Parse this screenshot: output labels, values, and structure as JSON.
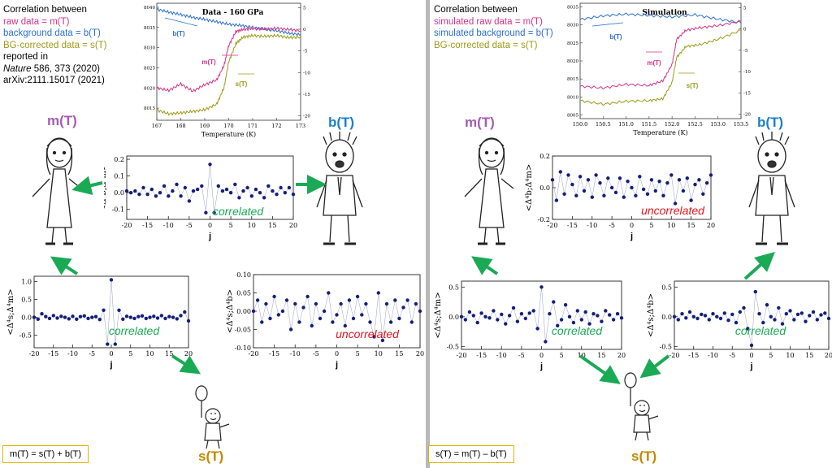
{
  "left": {
    "caption": {
      "line1": "Correlation between",
      "line2": "raw data = m(T)",
      "line3": "background data = b(T)",
      "line4": "BG-corrected data = s(T)",
      "line5": "reported in",
      "line6_journal": "Nature",
      "line6_rest": " 586, 373 (2020)",
      "line7": "arXiv:2111.15017 (2021)"
    },
    "names": {
      "m": "m(T)",
      "b": "b(T)",
      "s": "s(T)"
    },
    "formula": "m(T) = s(T) + b(T)"
  },
  "right": {
    "caption": {
      "line1": "Correlation between",
      "line2": "simulated raw data = m(T)",
      "line3": "simulated background = b(T)",
      "line4": "BG-corrected data = s(T)"
    },
    "names": {
      "m": "m(T)",
      "b": "b(T)",
      "s": "s(T)"
    },
    "formula": "s(T) = m(T) – b(T)"
  },
  "colors": {
    "m": "#d6338a",
    "b": "#2a6fd1",
    "s": "#9c9a17",
    "arrow": "#1aaa55",
    "dots": "#141f7a",
    "uncorr": "#e0161d",
    "corr": "#1aaa55",
    "name_m": "#a45db0",
    "name_b": "#1a7fd0",
    "name_s": "#c08a00"
  },
  "chart_data": [
    {
      "id": "left-temperature",
      "type": "line",
      "title": "Data - 160 GPa",
      "xlabel": "Temperature   (K)",
      "x_ticks": [
        "167",
        "168",
        "169",
        "170",
        "171",
        "172",
        "173"
      ],
      "y_left_ticks": [
        "8040",
        "8035",
        "8030",
        "8025",
        "8020",
        "8015"
      ],
      "y_right_ticks": [
        "5",
        "0",
        "-5",
        "-10",
        "-15",
        "-20"
      ],
      "xlim": [
        167,
        173
      ],
      "ylim_left": [
        8012,
        8041
      ],
      "ylim_right": [
        -21,
        6
      ],
      "labels": {
        "b": "b(T)",
        "m": "m(T)",
        "s": "s(T)"
      },
      "series": [
        {
          "name": "b(T)",
          "axis": "left",
          "x": [
            167.0,
            167.5,
            168.0,
            168.5,
            169.0,
            169.5,
            170.0,
            170.5,
            171.0,
            171.5,
            172.0,
            172.5,
            173.0
          ],
          "y": [
            8039.5,
            8038.8,
            8038.2,
            8037.5,
            8037.0,
            8036.4,
            8035.8,
            8035.5,
            8035.0,
            8034.6,
            8034.2,
            8033.6,
            8033.2
          ]
        },
        {
          "name": "m(T)",
          "axis": "left",
          "x": [
            167.0,
            167.5,
            168.0,
            168.5,
            169.0,
            169.5,
            169.8,
            170.0,
            170.3,
            170.6,
            171.0,
            171.5,
            172.0,
            172.5,
            173.0
          ],
          "y": [
            8020.0,
            8019.4,
            8021.0,
            8019.2,
            8020.8,
            8022.0,
            8025.5,
            8030.5,
            8034.0,
            8034.5,
            8034.7,
            8034.6,
            8034.8,
            8034.5,
            8034.2
          ]
        },
        {
          "name": "s(T)",
          "axis": "left",
          "x": [
            167.0,
            167.5,
            168.0,
            168.5,
            169.0,
            169.5,
            169.8,
            170.0,
            170.3,
            170.6,
            171.0,
            171.5,
            172.0,
            172.5,
            173.0
          ],
          "y": [
            8014.5,
            8013.6,
            8013.8,
            8014.2,
            8014.6,
            8016.0,
            8020.0,
            8026.5,
            8031.0,
            8032.6,
            8033.0,
            8032.8,
            8033.0,
            8032.5,
            8032.6
          ]
        }
      ]
    },
    {
      "id": "right-temperature",
      "type": "line",
      "title": "Simulation",
      "xlabel": "Temperature   (K)",
      "x_ticks": [
        "150.0",
        "150.5",
        "151.0",
        "151.5",
        "152.0",
        "152.5",
        "153.0",
        "153.5"
      ],
      "y_left_ticks": [
        "8035",
        "8030",
        "8025",
        "8020",
        "8015",
        "8010",
        "8005"
      ],
      "y_right_ticks": [
        "5",
        "0",
        "-5",
        "-10",
        "-15",
        "-20"
      ],
      "xlim": [
        150.0,
        153.5
      ],
      "ylim_left": [
        8004,
        8036
      ],
      "ylim_right": [
        -21,
        6
      ],
      "labels": {
        "b": "b(T)",
        "m": "m(T)",
        "s": "s(T)"
      },
      "series": [
        {
          "name": "b(T)",
          "axis": "left",
          "x": [
            150.0,
            150.5,
            151.0,
            151.5,
            152.0,
            152.5,
            153.0,
            153.5
          ],
          "y": [
            8031.5,
            8032.5,
            8033.0,
            8032.6,
            8032.2,
            8032.8,
            8031.6,
            8030.6
          ]
        },
        {
          "name": "m(T)",
          "axis": "left",
          "x": [
            150.0,
            150.5,
            151.0,
            151.5,
            151.8,
            152.0,
            152.1,
            152.3,
            152.6,
            153.0,
            153.5
          ],
          "y": [
            8013.0,
            8012.5,
            8013.5,
            8013.2,
            8014.5,
            8019.0,
            8026.0,
            8028.5,
            8029.2,
            8029.8,
            8031.0
          ]
        },
        {
          "name": "s(T)",
          "axis": "left",
          "x": [
            150.0,
            150.5,
            151.0,
            151.5,
            151.8,
            152.0,
            152.1,
            152.3,
            152.6,
            153.0,
            153.5
          ],
          "y": [
            8009.0,
            8008.0,
            8008.8,
            8009.0,
            8009.5,
            8014.0,
            8021.0,
            8024.0,
            8024.5,
            8026.0,
            8028.5
          ]
        }
      ]
    },
    {
      "id": "left-bm",
      "type": "scatter",
      "ylabel": "<Δ⁴b;Δ⁴m>",
      "xlabel": "j",
      "x_ticks": [
        "-20",
        "-15",
        "-10",
        "-5",
        "0",
        "5",
        "10",
        "15",
        "20"
      ],
      "y_ticks": [
        "0.2",
        "0.1",
        "0.0",
        "-0.1"
      ],
      "xlim": [
        -20,
        20
      ],
      "ylim": [
        -0.16,
        0.22
      ],
      "annotation": "correlated",
      "annotation_color": "corr",
      "x": [
        -20,
        -19,
        -18,
        -17,
        -16,
        -15,
        -14,
        -13,
        -12,
        -11,
        -10,
        -9,
        -8,
        -7,
        -6,
        -5,
        -4,
        -3,
        -2,
        -1,
        0,
        1,
        2,
        3,
        4,
        5,
        6,
        7,
        8,
        9,
        10,
        11,
        12,
        13,
        14,
        15,
        16,
        17,
        18,
        19,
        20
      ],
      "values": [
        0.01,
        0.0,
        0.01,
        -0.01,
        0.03,
        -0.01,
        0.02,
        -0.02,
        0.0,
        0.04,
        -0.02,
        0.01,
        0.05,
        -0.02,
        0.03,
        -0.05,
        0.01,
        0.02,
        0.04,
        -0.12,
        0.17,
        -0.12,
        0.04,
        0.01,
        0.02,
        0.0,
        0.05,
        -0.03,
        0.01,
        0.03,
        -0.02,
        0.02,
        0.0,
        -0.03,
        0.04,
        0.01,
        -0.01,
        0.03,
        0.0,
        0.03,
        -0.01
      ]
    },
    {
      "id": "left-sm",
      "type": "scatter",
      "ylabel": "<Δ⁴s;Δ⁴m>",
      "xlabel": "j",
      "x_ticks": [
        "-20",
        "-15",
        "-10",
        "-5",
        "0",
        "5",
        "10",
        "15",
        "20"
      ],
      "y_ticks": [
        "1.0",
        "0.5",
        "0.0",
        "-0.5"
      ],
      "xlim": [
        -20,
        20
      ],
      "ylim": [
        -0.85,
        1.15
      ],
      "annotation": "correlated",
      "annotation_color": "corr",
      "x": [
        -20,
        -19,
        -18,
        -17,
        -16,
        -15,
        -14,
        -13,
        -12,
        -11,
        -10,
        -9,
        -8,
        -7,
        -6,
        -5,
        -4,
        -3,
        -2,
        -1,
        0,
        1,
        2,
        3,
        4,
        5,
        6,
        7,
        8,
        9,
        10,
        11,
        12,
        13,
        14,
        15,
        16,
        17,
        18,
        19,
        20
      ],
      "values": [
        0.0,
        -0.05,
        0.1,
        0.02,
        -0.03,
        0.05,
        -0.02,
        0.03,
        0.0,
        -0.04,
        0.03,
        -0.05,
        0.02,
        0.04,
        -0.03,
        0.0,
        0.02,
        -0.06,
        0.2,
        -0.75,
        1.05,
        -0.75,
        0.2,
        -0.05,
        0.03,
        0.0,
        -0.03,
        0.02,
        0.04,
        -0.03,
        0.0,
        0.03,
        -0.02,
        0.05,
        -0.03,
        0.02,
        0.0,
        -0.04,
        0.05,
        0.15,
        -0.1
      ]
    },
    {
      "id": "left-sb",
      "type": "scatter",
      "ylabel": "<Δ⁴s;Δ⁴b>",
      "xlabel": "j",
      "x_ticks": [
        "-20",
        "-15",
        "-10",
        "-5",
        "0",
        "5",
        "10",
        "15",
        "20"
      ],
      "y_ticks": [
        "0.10",
        "0.05",
        "0.00",
        "-0.05",
        "-0.10"
      ],
      "xlim": [
        -20,
        20
      ],
      "ylim": [
        -0.1,
        0.1
      ],
      "annotation": "uncorrelated",
      "annotation_color": "uncorr",
      "x": [
        -20,
        -19,
        -18,
        -17,
        -16,
        -15,
        -14,
        -13,
        -12,
        -11,
        -10,
        -9,
        -8,
        -7,
        -6,
        -5,
        -4,
        -3,
        -2,
        -1,
        0,
        1,
        2,
        3,
        4,
        5,
        6,
        7,
        8,
        9,
        10,
        11,
        12,
        13,
        14,
        15,
        16,
        17,
        18,
        19,
        20
      ],
      "values": [
        0.0,
        0.03,
        -0.03,
        0.02,
        -0.02,
        0.04,
        -0.01,
        0.0,
        0.03,
        -0.05,
        0.02,
        -0.03,
        0.01,
        0.04,
        -0.04,
        0.02,
        -0.02,
        0.0,
        0.05,
        -0.03,
        -0.01,
        0.02,
        -0.04,
        0.03,
        -0.02,
        0.04,
        -0.01,
        0.02,
        -0.03,
        -0.07,
        0.05,
        -0.08,
        0.02,
        -0.03,
        0.03,
        -0.02,
        0.01,
        0.03,
        -0.03,
        0.02,
        0.0
      ]
    },
    {
      "id": "right-bm",
      "type": "scatter",
      "ylabel": "<Δ⁴b;Δ⁴m>",
      "xlabel": "j",
      "x_ticks": [
        "-20",
        "-15",
        "-10",
        "-5",
        "0",
        "5",
        "10",
        "15",
        "20"
      ],
      "y_ticks": [
        "0.2",
        "0.0",
        "-0.2"
      ],
      "xlim": [
        -20,
        20
      ],
      "ylim": [
        -0.2,
        0.2
      ],
      "annotation": "uncorrelated",
      "annotation_color": "uncorr",
      "x": [
        -20,
        -19,
        -18,
        -17,
        -16,
        -15,
        -14,
        -13,
        -12,
        -11,
        -10,
        -9,
        -8,
        -7,
        -6,
        -5,
        -4,
        -3,
        -2,
        -1,
        0,
        1,
        2,
        3,
        4,
        5,
        6,
        7,
        8,
        9,
        10,
        11,
        12,
        13,
        14,
        15,
        16,
        17,
        18,
        19,
        20
      ],
      "values": [
        0.05,
        -0.08,
        0.1,
        -0.04,
        0.08,
        0.02,
        -0.05,
        0.07,
        -0.02,
        0.05,
        -0.06,
        0.08,
        0.03,
        -0.05,
        0.06,
        0.0,
        -0.03,
        0.06,
        -0.06,
        0.04,
        0.0,
        -0.05,
        0.07,
        -0.01,
        -0.04,
        0.05,
        -0.02,
        0.04,
        -0.05,
        0.03,
        0.08,
        -0.1,
        0.05,
        -0.02,
        0.06,
        -0.08,
        0.02,
        0.05,
        -0.04,
        0.03,
        0.08
      ]
    },
    {
      "id": "right-sm",
      "type": "scatter",
      "ylabel": "<Δ⁴s;Δ⁴m>",
      "xlabel": "j",
      "x_ticks": [
        "-20",
        "-15",
        "-10",
        "-5",
        "0",
        "5",
        "10",
        "15",
        "20"
      ],
      "y_ticks": [
        "0.5",
        "0.0",
        "-0.5"
      ],
      "xlim": [
        -20,
        20
      ],
      "ylim": [
        -0.55,
        0.6
      ],
      "annotation": "correlated",
      "annotation_color": "corr",
      "x": [
        -20,
        -19,
        -18,
        -17,
        -16,
        -15,
        -14,
        -13,
        -12,
        -11,
        -10,
        -9,
        -8,
        -7,
        -6,
        -5,
        -4,
        -3,
        -2,
        -1,
        0,
        1,
        2,
        3,
        4,
        5,
        6,
        7,
        8,
        9,
        10,
        11,
        12,
        13,
        14,
        15,
        16,
        17,
        18,
        19,
        20
      ],
      "values": [
        0.0,
        -0.05,
        0.08,
        0.02,
        -0.1,
        0.06,
        0.0,
        -0.02,
        0.1,
        -0.05,
        0.04,
        -0.12,
        0.02,
        0.15,
        -0.08,
        0.05,
        -0.03,
        0.06,
        0.1,
        -0.2,
        0.5,
        -0.42,
        0.05,
        0.25,
        -0.15,
        -0.05,
        0.2,
        0.0,
        -0.1,
        0.1,
        -0.05,
        0.08,
        -0.12,
        0.05,
        0.02,
        -0.08,
        0.1,
        0.03,
        -0.05,
        0.05,
        -0.02
      ]
    },
    {
      "id": "right-sb",
      "type": "scatter",
      "ylabel": "<Δ⁴s;Δ⁴b>",
      "xlabel": "j",
      "x_ticks": [
        "-20",
        "-15",
        "-10",
        "-5",
        "0",
        "5",
        "10",
        "15",
        "20"
      ],
      "y_ticks": [
        "0.5",
        "0.0",
        "-0.5"
      ],
      "xlim": [
        -20,
        20
      ],
      "ylim": [
        -0.55,
        0.6
      ],
      "annotation": "correlated",
      "annotation_color": "corr",
      "x": [
        -20,
        -19,
        -18,
        -17,
        -16,
        -15,
        -14,
        -13,
        -12,
        -11,
        -10,
        -9,
        -8,
        -7,
        -6,
        -5,
        -4,
        -3,
        -2,
        -1,
        0,
        1,
        2,
        3,
        4,
        5,
        6,
        7,
        8,
        9,
        10,
        11,
        12,
        13,
        14,
        15,
        16,
        17,
        18,
        19,
        20
      ],
      "values": [
        0.0,
        -0.05,
        0.05,
        -0.02,
        0.08,
        0.0,
        -0.03,
        0.04,
        0.02,
        -0.05,
        0.05,
        0.0,
        -0.03,
        0.06,
        -0.06,
        0.04,
        -0.1,
        0.08,
        0.15,
        -0.2,
        -0.48,
        0.42,
        0.05,
        -0.1,
        0.2,
        0.0,
        -0.05,
        0.15,
        -0.12,
        0.05,
        0.1,
        -0.05,
        0.04,
        0.06,
        -0.08,
        0.02,
        0.08,
        -0.05,
        0.03,
        0.06,
        -0.03
      ]
    }
  ]
}
